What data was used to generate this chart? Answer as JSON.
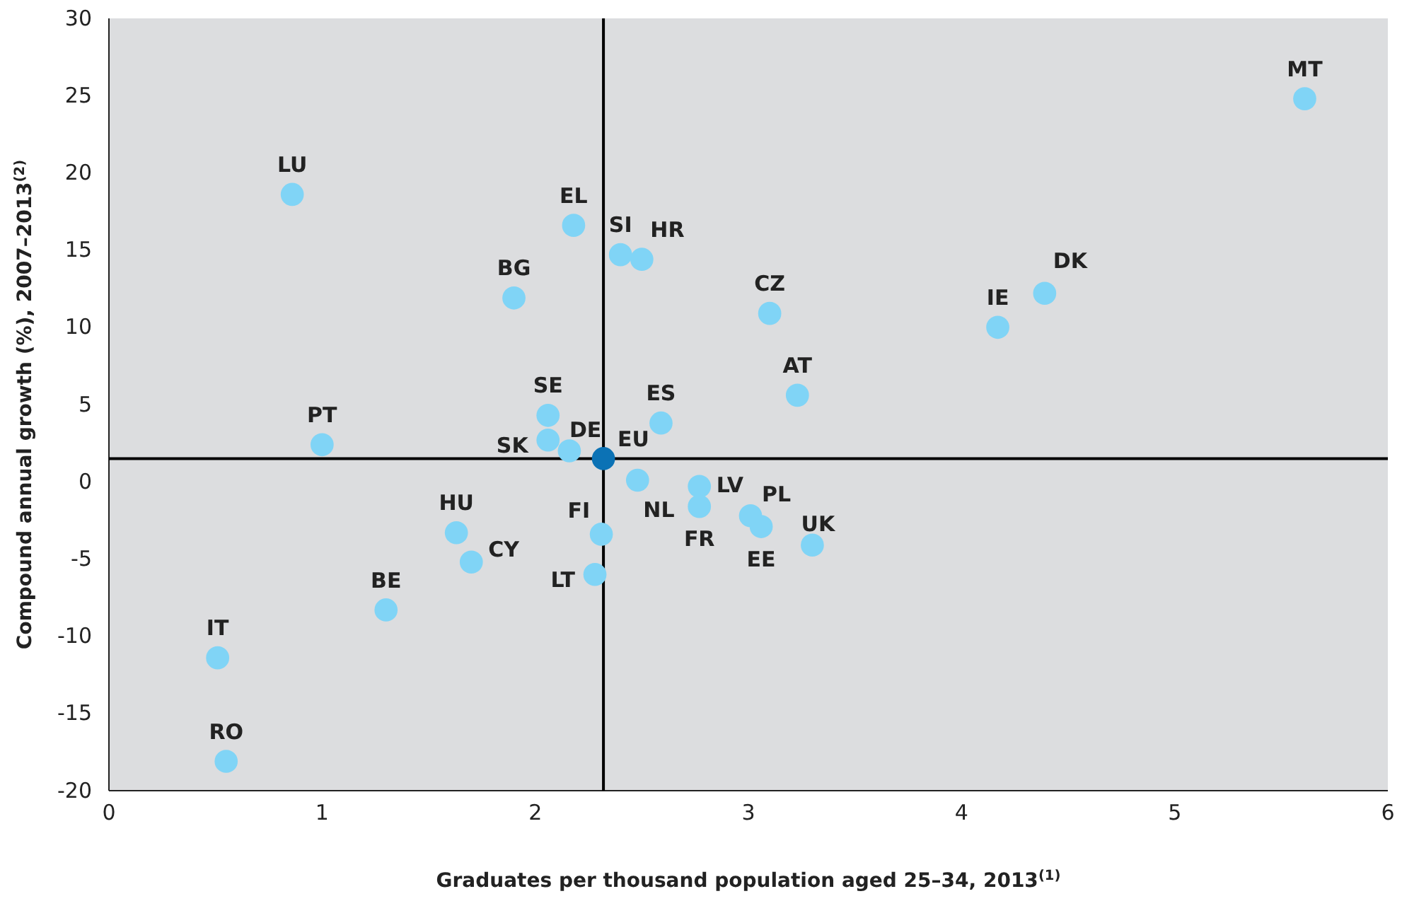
{
  "chart_data": {
    "type": "scatter",
    "xlabel": "Graduates per thousand population aged 25–34, 2013$^{(1)}$",
    "ylabel": "Compound annual growth (%), 2007–2013$^{(2)}$",
    "xlim": [
      0,
      6
    ],
    "xticks": [
      0,
      1,
      2,
      3,
      4,
      5,
      6
    ],
    "ylim": [
      -20,
      30
    ],
    "yticks": [
      -20,
      -15,
      -10,
      -5,
      0,
      5,
      10,
      15,
      20,
      25,
      30
    ],
    "grid": false,
    "marker": "circle",
    "ref_lines": [
      {
        "axis": "x",
        "value": 2.32,
        "color": "#000000"
      },
      {
        "axis": "y",
        "value": 1.5,
        "color": "#000000"
      }
    ],
    "series": [
      {
        "name": "MT",
        "color": "#80d4f6",
        "x": [
          5.61
        ],
        "values": [
          24.8
        ]
      },
      {
        "name": "LU",
        "color": "#80d4f6",
        "x": [
          0.86
        ],
        "values": [
          18.6
        ]
      },
      {
        "name": "EL",
        "color": "#80d4f6",
        "x": [
          2.18
        ],
        "values": [
          16.6
        ]
      },
      {
        "name": "SI",
        "color": "#80d4f6",
        "x": [
          2.4
        ],
        "values": [
          14.7
        ]
      },
      {
        "name": "HR",
        "color": "#80d4f6",
        "x": [
          2.5
        ],
        "values": [
          14.4
        ]
      },
      {
        "name": "BG",
        "color": "#80d4f6",
        "x": [
          1.9
        ],
        "values": [
          11.9
        ]
      },
      {
        "name": "CZ",
        "color": "#80d4f6",
        "x": [
          3.1
        ],
        "values": [
          10.9
        ]
      },
      {
        "name": "DK",
        "color": "#80d4f6",
        "x": [
          4.39
        ],
        "values": [
          12.2
        ]
      },
      {
        "name": "IE",
        "color": "#80d4f6",
        "x": [
          4.17
        ],
        "values": [
          10
        ]
      },
      {
        "name": "AT",
        "color": "#80d4f6",
        "x": [
          3.23
        ],
        "values": [
          5.6
        ]
      },
      {
        "name": "ES",
        "color": "#80d4f6",
        "x": [
          2.59
        ],
        "values": [
          3.8
        ]
      },
      {
        "name": "SE",
        "color": "#80d4f6",
        "x": [
          2.06
        ],
        "values": [
          4.3
        ]
      },
      {
        "name": "PT",
        "color": "#80d4f6",
        "x": [
          1
        ],
        "values": [
          2.4
        ]
      },
      {
        "name": "SK",
        "color": "#80d4f6",
        "x": [
          2.06
        ],
        "values": [
          2.7
        ]
      },
      {
        "name": "DE",
        "color": "#80d4f6",
        "x": [
          2.16
        ],
        "values": [
          2
        ]
      },
      {
        "name": "EU",
        "color": "#0b72b5",
        "x": [
          2.32
        ],
        "values": [
          1.5
        ]
      },
      {
        "name": "NL",
        "color": "#80d4f6",
        "x": [
          2.48
        ],
        "values": [
          0.1
        ]
      },
      {
        "name": "LV",
        "color": "#80d4f6",
        "x": [
          2.77
        ],
        "values": [
          -0.3
        ]
      },
      {
        "name": "FR",
        "color": "#80d4f6",
        "x": [
          2.77
        ],
        "values": [
          -1.6
        ]
      },
      {
        "name": "PL",
        "color": "#80d4f6",
        "x": [
          3.01
        ],
        "values": [
          -2.2
        ]
      },
      {
        "name": "EE",
        "color": "#80d4f6",
        "x": [
          3.06
        ],
        "values": [
          -2.9
        ]
      },
      {
        "name": "UK",
        "color": "#80d4f6",
        "x": [
          3.3
        ],
        "values": [
          -4.1
        ]
      },
      {
        "name": "HU",
        "color": "#80d4f6",
        "x": [
          1.63
        ],
        "values": [
          -3.3
        ]
      },
      {
        "name": "FI",
        "color": "#80d4f6",
        "x": [
          2.31
        ],
        "values": [
          -3.4
        ]
      },
      {
        "name": "CY",
        "color": "#80d4f6",
        "x": [
          1.7
        ],
        "values": [
          -5.2
        ]
      },
      {
        "name": "LT",
        "color": "#80d4f6",
        "x": [
          2.28
        ],
        "values": [
          -6
        ]
      },
      {
        "name": "BE",
        "color": "#80d4f6",
        "x": [
          1.3
        ],
        "values": [
          -8.3
        ]
      },
      {
        "name": "IT",
        "color": "#80d4f6",
        "x": [
          0.51
        ],
        "values": [
          -11.4
        ]
      },
      {
        "name": "RO",
        "color": "#80d4f6",
        "x": [
          0.55
        ],
        "values": [
          -18.1
        ]
      }
    ]
  }
}
